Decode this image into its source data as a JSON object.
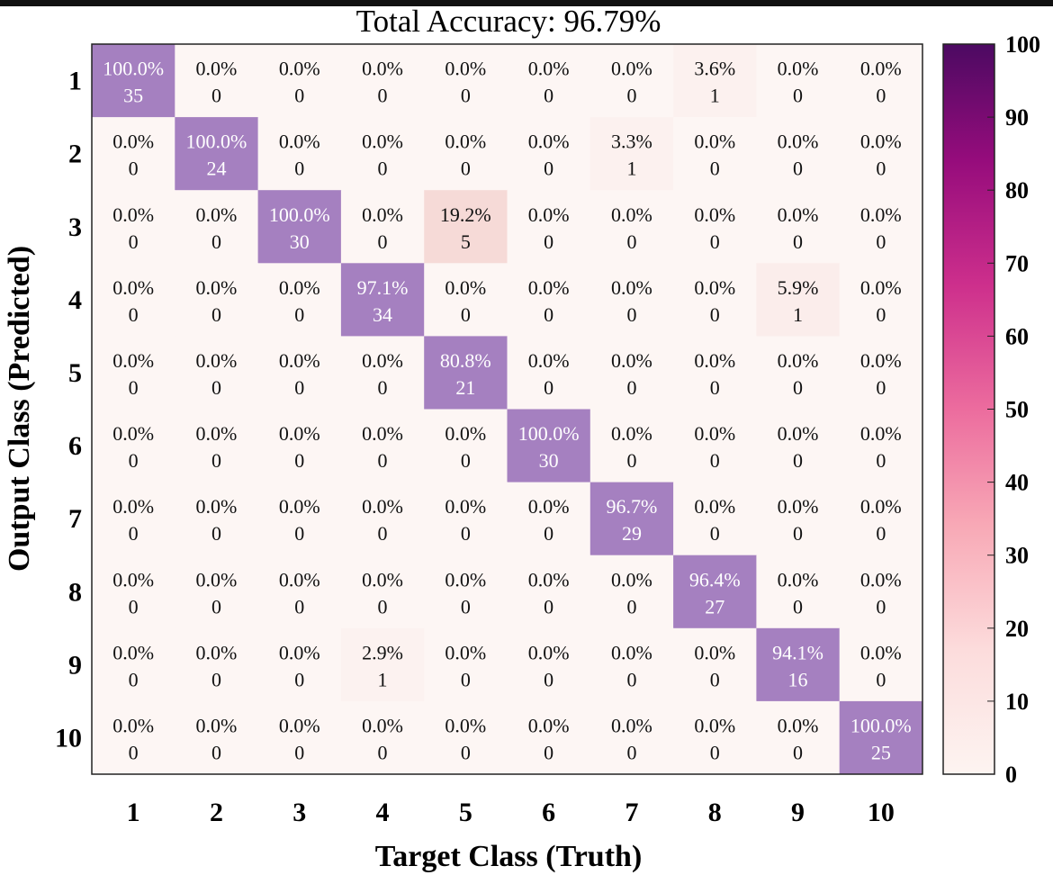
{
  "chart_data": {
    "type": "heatmap",
    "title": "Total Accuracy: 96.79%",
    "xlabel": "Target Class (Truth)",
    "ylabel": "Output Class (Predicted)",
    "x_categories": [
      "1",
      "2",
      "3",
      "4",
      "5",
      "6",
      "7",
      "8",
      "9",
      "10"
    ],
    "y_categories": [
      "1",
      "2",
      "3",
      "4",
      "5",
      "6",
      "7",
      "8",
      "9",
      "10"
    ],
    "counts": [
      [
        35,
        0,
        0,
        0,
        0,
        0,
        0,
        1,
        0,
        0
      ],
      [
        0,
        24,
        0,
        0,
        0,
        0,
        1,
        0,
        0,
        0
      ],
      [
        0,
        0,
        30,
        0,
        5,
        0,
        0,
        0,
        0,
        0
      ],
      [
        0,
        0,
        0,
        34,
        0,
        0,
        0,
        0,
        1,
        0
      ],
      [
        0,
        0,
        0,
        0,
        21,
        0,
        0,
        0,
        0,
        0
      ],
      [
        0,
        0,
        0,
        0,
        0,
        30,
        0,
        0,
        0,
        0
      ],
      [
        0,
        0,
        0,
        0,
        0,
        0,
        29,
        0,
        0,
        0
      ],
      [
        0,
        0,
        0,
        0,
        0,
        0,
        0,
        27,
        0,
        0
      ],
      [
        0,
        0,
        0,
        1,
        0,
        0,
        0,
        0,
        16,
        0
      ],
      [
        0,
        0,
        0,
        0,
        0,
        0,
        0,
        0,
        0,
        25
      ]
    ],
    "percent_labels": [
      [
        "100.0%",
        "0.0%",
        "0.0%",
        "0.0%",
        "0.0%",
        "0.0%",
        "0.0%",
        "3.6%",
        "0.0%",
        "0.0%"
      ],
      [
        "0.0%",
        "100.0%",
        "0.0%",
        "0.0%",
        "0.0%",
        "0.0%",
        "3.3%",
        "0.0%",
        "0.0%",
        "0.0%"
      ],
      [
        "0.0%",
        "0.0%",
        "100.0%",
        "0.0%",
        "19.2%",
        "0.0%",
        "0.0%",
        "0.0%",
        "0.0%",
        "0.0%"
      ],
      [
        "0.0%",
        "0.0%",
        "0.0%",
        "97.1%",
        "0.0%",
        "0.0%",
        "0.0%",
        "0.0%",
        "5.9%",
        "0.0%"
      ],
      [
        "0.0%",
        "0.0%",
        "0.0%",
        "0.0%",
        "80.8%",
        "0.0%",
        "0.0%",
        "0.0%",
        "0.0%",
        "0.0%"
      ],
      [
        "0.0%",
        "0.0%",
        "0.0%",
        "0.0%",
        "0.0%",
        "100.0%",
        "0.0%",
        "0.0%",
        "0.0%",
        "0.0%"
      ],
      [
        "0.0%",
        "0.0%",
        "0.0%",
        "0.0%",
        "0.0%",
        "0.0%",
        "96.7%",
        "0.0%",
        "0.0%",
        "0.0%"
      ],
      [
        "0.0%",
        "0.0%",
        "0.0%",
        "0.0%",
        "0.0%",
        "0.0%",
        "0.0%",
        "96.4%",
        "0.0%",
        "0.0%"
      ],
      [
        "0.0%",
        "0.0%",
        "0.0%",
        "2.9%",
        "0.0%",
        "0.0%",
        "0.0%",
        "0.0%",
        "94.1%",
        "0.0%"
      ],
      [
        "0.0%",
        "0.0%",
        "0.0%",
        "0.0%",
        "0.0%",
        "0.0%",
        "0.0%",
        "0.0%",
        "0.0%",
        "100.0%"
      ]
    ],
    "diagonal_color": "#a580c0",
    "diagonal_text_color": "#ffffff",
    "colorbar": {
      "ticks": [
        0,
        10,
        20,
        30,
        40,
        50,
        60,
        70,
        80,
        90,
        100
      ],
      "range": [
        0,
        100
      ],
      "colors": [
        "#fdf4f1",
        "#fcdcdc",
        "#f8a9b6",
        "#ec6c9e",
        "#cd2f8c",
        "#960c7c",
        "#4c0a62"
      ]
    }
  }
}
